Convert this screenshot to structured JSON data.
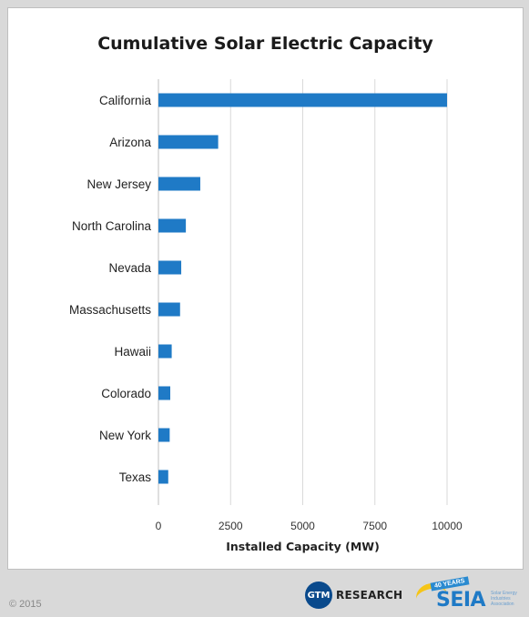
{
  "chart_data": {
    "type": "bar",
    "orientation": "horizontal",
    "title": "Cumulative Solar Electric Capacity",
    "xlabel": "Installed Capacity (MW)",
    "ylabel": "",
    "categories": [
      "California",
      "Arizona",
      "New Jersey",
      "North Carolina",
      "Nevada",
      "Massachusetts",
      "Hawaii",
      "Colorado",
      "New York",
      "Texas"
    ],
    "values": [
      10000,
      2070,
      1450,
      950,
      790,
      750,
      460,
      410,
      390,
      340
    ],
    "xlim": [
      0,
      10000
    ],
    "xticks": [
      "0",
      "2500",
      "5000",
      "7500",
      "10000"
    ],
    "grid": "vertical",
    "legend": "none",
    "bar_color": "#1f7ac6",
    "grid_color": "#d9d9d9"
  },
  "footer": {
    "copyright": "© 2015",
    "gtm_badge": "GTM",
    "gtm_text": "RESEARCH",
    "seia_ribbon": "40 YEARS",
    "seia_word": "SEIA",
    "seia_tagline": "Solar Energy Industries Association"
  }
}
